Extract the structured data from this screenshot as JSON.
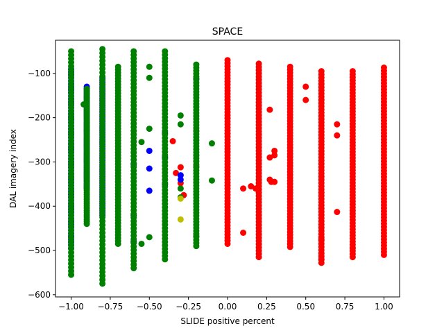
{
  "chart_data": {
    "type": "scatter",
    "title": "SPACE",
    "xlabel": "SLIDE positive percent",
    "ylabel": "DAL imagery index",
    "xlim": [
      -1.1,
      1.1
    ],
    "ylim": [
      -605,
      -25
    ],
    "xticks": [
      -1.0,
      -0.75,
      -0.5,
      -0.25,
      0.0,
      0.25,
      0.5,
      0.75,
      1.0
    ],
    "xtick_labels": [
      "−1.00",
      "−0.75",
      "−0.50",
      "−0.25",
      "0.00",
      "0.25",
      "0.50",
      "0.75",
      "1.00"
    ],
    "yticks": [
      -600,
      -500,
      -400,
      -300,
      -200,
      -100
    ],
    "ytick_labels": [
      "−600",
      "−500",
      "−400",
      "−300",
      "−200",
      "−100"
    ],
    "grid": false,
    "series": [
      {
        "color": "#ff0000",
        "columns": [
          {
            "x": 0.0,
            "y_min": -485,
            "y_max": -70
          },
          {
            "x": 0.2,
            "y_min": -515,
            "y_max": -78
          },
          {
            "x": 0.4,
            "y_min": -492,
            "y_max": -85
          },
          {
            "x": 0.6,
            "y_min": -528,
            "y_max": -95
          },
          {
            "x": 0.8,
            "y_min": -515,
            "y_max": -95
          },
          {
            "x": 1.0,
            "y_min": -510,
            "y_max": -87
          }
        ],
        "points": [
          [
            -0.35,
            -253
          ],
          [
            -0.33,
            -325
          ],
          [
            -0.3,
            -312
          ],
          [
            -0.3,
            -348
          ],
          [
            -0.28,
            -375
          ],
          [
            -0.2,
            -230
          ],
          [
            -0.2,
            -285
          ],
          [
            -0.2,
            -310
          ],
          [
            -0.2,
            -468
          ],
          [
            0.1,
            -360
          ],
          [
            0.1,
            -460
          ],
          [
            0.15,
            -355
          ],
          [
            0.18,
            -360
          ],
          [
            0.27,
            -182
          ],
          [
            0.27,
            -290
          ],
          [
            0.27,
            -340
          ],
          [
            0.28,
            -345
          ],
          [
            0.3,
            -275
          ],
          [
            0.3,
            -285
          ],
          [
            0.3,
            -345
          ],
          [
            0.5,
            -130
          ],
          [
            0.5,
            -160
          ],
          [
            0.7,
            -215
          ],
          [
            0.7,
            -240
          ],
          [
            0.7,
            -413
          ],
          [
            0.6,
            -475
          ],
          [
            0.6,
            -520
          ],
          [
            0.8,
            -495
          ]
        ]
      },
      {
        "color": "#0000ff",
        "columns": [
          {
            "x": -1.0,
            "y_min": -495,
            "y_max": -90
          },
          {
            "x": -0.9,
            "y_min": -360,
            "y_max": -130
          },
          {
            "x": -0.8,
            "y_min": -420,
            "y_max": -110
          }
        ],
        "points": [
          [
            -0.6,
            -305
          ],
          [
            -0.6,
            -420
          ],
          [
            -0.6,
            -480
          ],
          [
            -0.5,
            -275
          ],
          [
            -0.5,
            -315
          ],
          [
            -0.5,
            -365
          ],
          [
            -0.4,
            -235
          ],
          [
            -0.4,
            -290
          ],
          [
            -0.4,
            -350
          ],
          [
            -0.3,
            -330
          ],
          [
            -0.3,
            -340
          ],
          [
            -0.2,
            -112
          ]
        ]
      },
      {
        "color": "#008000",
        "columns": [
          {
            "x": -1.0,
            "y_min": -555,
            "y_max": -50
          },
          {
            "x": -0.9,
            "y_min": -440,
            "y_max": -135
          },
          {
            "x": -0.8,
            "y_min": -575,
            "y_max": -45
          },
          {
            "x": -0.7,
            "y_min": -485,
            "y_max": -85
          },
          {
            "x": -0.6,
            "y_min": -540,
            "y_max": -50
          },
          {
            "x": -0.4,
            "y_min": -520,
            "y_max": -50
          },
          {
            "x": -0.2,
            "y_min": -490,
            "y_max": -80
          }
        ],
        "points": [
          [
            -0.92,
            -170
          ],
          [
            -0.55,
            -255
          ],
          [
            -0.55,
            -485
          ],
          [
            -0.5,
            -470
          ],
          [
            -0.5,
            -85
          ],
          [
            -0.5,
            -110
          ],
          [
            -0.5,
            -225
          ],
          [
            -0.3,
            -195
          ],
          [
            -0.3,
            -215
          ],
          [
            -0.3,
            -360
          ],
          [
            -0.3,
            -380
          ],
          [
            -0.1,
            -258
          ],
          [
            -0.1,
            -342
          ]
        ]
      },
      {
        "color": "#bfbf00",
        "columns": [],
        "points": [
          [
            -0.3,
            -383
          ],
          [
            -0.3,
            -430
          ]
        ]
      }
    ]
  }
}
